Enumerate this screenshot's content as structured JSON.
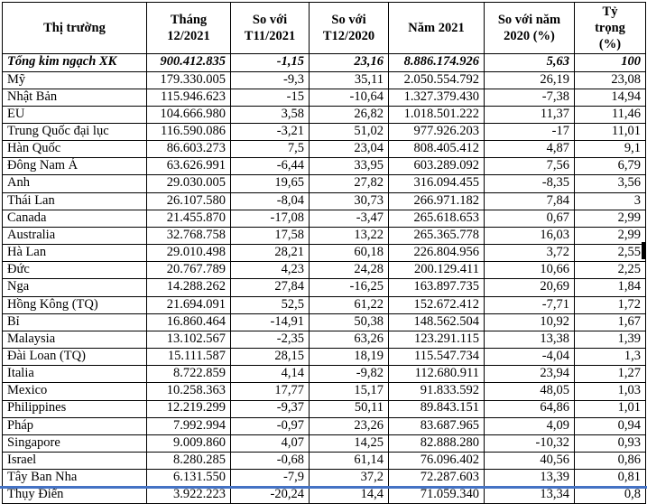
{
  "table": {
    "headers": [
      "Thị trường",
      "Tháng\n12/2021",
      "So với\nT11/2021",
      "So với\nT12/2020",
      "Năm 2021",
      "So với năm\n2020 (%)",
      "Tỷ\ntrọng\n(%)"
    ],
    "total_row": [
      "Tổng kim ngạch XK",
      "900.412.835",
      "-1,15",
      "23,16",
      "8.886.174.926",
      "5,63",
      "100"
    ],
    "rows": [
      [
        "Mỹ",
        "179.330.005",
        "-9,3",
        "35,11",
        "2.050.554.792",
        "26,19",
        "23,08"
      ],
      [
        "Nhật Bản",
        "115.946.623",
        "-15",
        "-10,64",
        "1.327.379.430",
        "-7,38",
        "14,94"
      ],
      [
        "EU",
        "104.666.980",
        "3,58",
        "26,82",
        "1.018.501.222",
        "11,37",
        "11,46"
      ],
      [
        "Trung Quốc đại lục",
        "116.590.086",
        "-3,21",
        "51,02",
        "977.926.203",
        "-17",
        "11,01"
      ],
      [
        "Hàn Quốc",
        "86.603.273",
        "7,5",
        "23,04",
        "808.405.412",
        "4,87",
        "9,1"
      ],
      [
        "Đông Nam Á",
        "63.626.991",
        "-6,44",
        "33,95",
        "603.289.092",
        "7,56",
        "6,79"
      ],
      [
        "Anh",
        "29.030.005",
        "19,65",
        "27,82",
        "316.094.455",
        "-8,35",
        "3,56"
      ],
      [
        "Thái Lan",
        "26.107.580",
        "-8,04",
        "30,73",
        "266.971.182",
        "7,84",
        "3"
      ],
      [
        "Canada",
        "21.455.870",
        "-17,08",
        "-3,47",
        "265.618.653",
        "0,67",
        "2,99"
      ],
      [
        "Australia",
        "32.768.758",
        "17,58",
        "13,22",
        "265.365.778",
        "16,03",
        "2,99"
      ],
      [
        "Hà Lan",
        "29.010.498",
        "28,21",
        "60,18",
        "226.804.956",
        "3,72",
        "2,55"
      ],
      [
        "Đức",
        "20.767.789",
        "4,23",
        "24,28",
        "200.129.411",
        "10,66",
        "2,25"
      ],
      [
        "Nga",
        "14.288.262",
        "27,84",
        "-16,25",
        "163.897.735",
        "20,69",
        "1,84"
      ],
      [
        "Hồng Kông (TQ)",
        "21.694.091",
        "52,5",
        "61,22",
        "152.672.412",
        "-7,71",
        "1,72"
      ],
      [
        "Bỉ",
        "16.860.464",
        "-14,91",
        "50,38",
        "148.562.504",
        "10,92",
        "1,67"
      ],
      [
        "Malaysia",
        "13.102.567",
        "-2,35",
        "63,26",
        "123.291.115",
        "13,38",
        "1,39"
      ],
      [
        "Đài Loan (TQ)",
        "15.111.587",
        "28,15",
        "18,19",
        "115.547.734",
        "-4,04",
        "1,3"
      ],
      [
        "Italia",
        "8.722.859",
        "4,14",
        "-9,82",
        "112.680.911",
        "23,94",
        "1,27"
      ],
      [
        "Mexico",
        "10.258.363",
        "17,77",
        "15,17",
        "91.833.592",
        "48,05",
        "1,03"
      ],
      [
        "Philippines",
        "12.219.299",
        "-9,37",
        "50,11",
        "89.843.151",
        "64,86",
        "1,01"
      ],
      [
        "Pháp",
        "7.992.994",
        "-0,97",
        "23,26",
        "83.687.965",
        "4,09",
        "0,94"
      ],
      [
        "Singapore",
        "9.009.860",
        "4,07",
        "14,25",
        "82.888.280",
        "-10,32",
        "0,93"
      ],
      [
        "Israel",
        "8.280.285",
        "-0,68",
        "61,14",
        "76.096.402",
        "40,56",
        "0,86"
      ],
      [
        "Tây Ban Nha",
        "6.131.550",
        "-7,9",
        "37,2",
        "72.287.603",
        "13,39",
        "0,81"
      ]
    ],
    "partial_row": [
      "Thụy Điển",
      "3.922.223",
      "-20,24",
      "14,4",
      "71.059.340",
      "13,34",
      "0,8"
    ]
  },
  "artifacts": {
    "selection_line_color": "#4472C4"
  }
}
